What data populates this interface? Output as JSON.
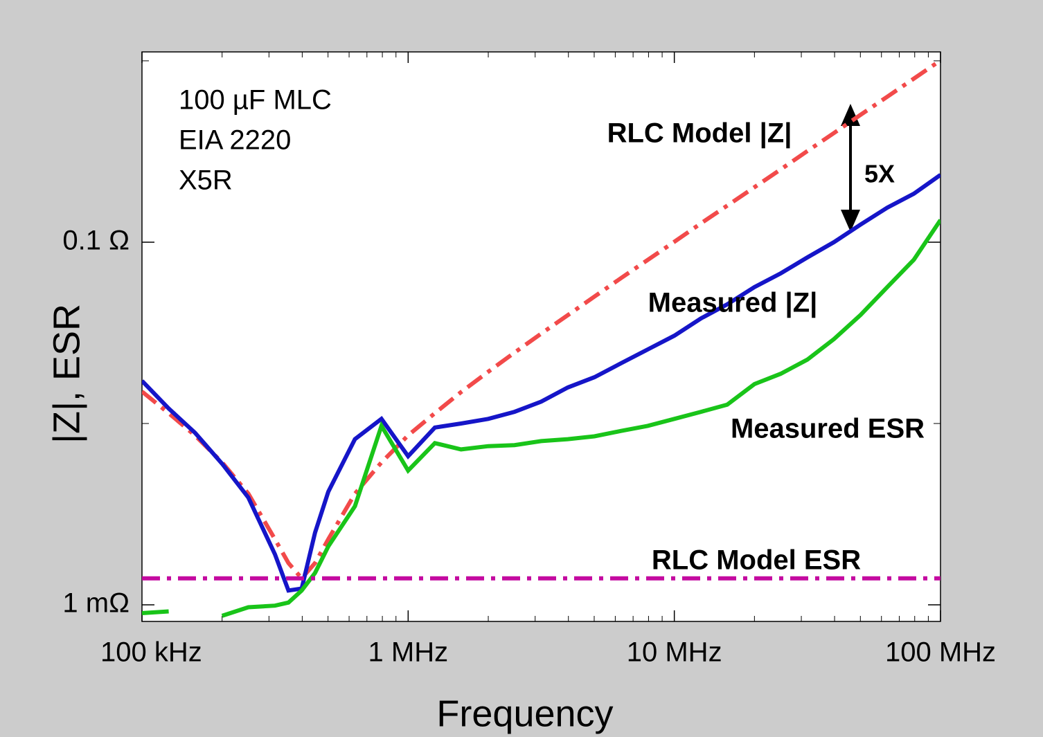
{
  "chart_data": {
    "type": "line",
    "xlabel": "Frequency",
    "ylabel": "|Z|, ESR",
    "x": [
      100000,
      126000,
      158000,
      200000,
      251000,
      316000,
      355000,
      398000,
      447000,
      501000,
      631000,
      794000,
      1000000,
      1260000,
      1580000,
      2000000,
      2510000,
      3160000,
      3980000,
      5010000,
      6310000,
      7940000,
      10000000,
      12600000,
      15800000,
      20000000,
      25100000,
      31600000,
      39800000,
      50100000,
      63100000,
      79400000,
      100000000
    ],
    "xlim": [
      100000,
      100000000
    ],
    "ylim": [
      0.00081,
      1.12
    ],
    "xlog": true,
    "ylog": true,
    "xticks": [
      {
        "value": 100000,
        "label": "100 kHz"
      },
      {
        "value": 1000000,
        "label": "1 MHz"
      },
      {
        "value": 10000000,
        "label": "10 MHz"
      },
      {
        "value": 100000000,
        "label": "100 MHz"
      }
    ],
    "yticks": [
      {
        "value": 0.1,
        "label": "0.1 Ω"
      },
      {
        "value": 0.001,
        "label": "1 mΩ"
      }
    ],
    "annotations": [
      "100 µF MLC",
      "EIA 2220",
      "X5R",
      "5X"
    ],
    "series": [
      {
        "name": "RLC Model |Z|",
        "color": "#f24a4a",
        "dash": "dashdot",
        "values": [
          0.015,
          0.0114,
          0.0086,
          0.0061,
          0.0041,
          0.0023,
          0.0017,
          0.0014,
          0.0017,
          0.0023,
          0.0041,
          0.0061,
          0.0086,
          0.0114,
          0.0149,
          0.0193,
          0.0246,
          0.0313,
          0.0396,
          0.0501,
          0.0634,
          0.0798,
          0.1005,
          0.127,
          0.159,
          0.201,
          0.252,
          0.318,
          0.4,
          0.504,
          0.634,
          0.798,
          1.005
        ]
      },
      {
        "name": "Measured |Z|",
        "color": "#1515c8",
        "dash": "solid",
        "values": [
          0.0172,
          0.0121,
          0.0089,
          0.006,
          0.0039,
          0.0019,
          0.0012,
          0.00123,
          0.0025,
          0.0042,
          0.0082,
          0.0106,
          0.0066,
          0.0095,
          0.01,
          0.0106,
          0.0116,
          0.0132,
          0.0158,
          0.018,
          0.0215,
          0.0256,
          0.0305,
          0.038,
          0.0454,
          0.0565,
          0.0673,
          0.0824,
          0.1,
          0.125,
          0.155,
          0.185,
          0.235
        ]
      },
      {
        "name": "Measured ESR",
        "color": "#19c419",
        "dash": "solid",
        "values": [
          0.0009,
          0.00092,
          null,
          0.00087,
          0.00097,
          0.00099,
          0.00103,
          0.0012,
          0.0015,
          0.0021,
          0.0035,
          0.0097,
          0.0055,
          0.0078,
          0.0072,
          0.0075,
          0.0076,
          0.008,
          0.0082,
          0.0085,
          0.0091,
          0.0097,
          0.0106,
          0.0116,
          0.0127,
          0.0165,
          0.0188,
          0.0225,
          0.0292,
          0.0397,
          0.0565,
          0.08,
          0.1325
        ]
      },
      {
        "name": "RLC Model ESR",
        "color": "#c40aa0",
        "dash": "dashdot",
        "values": [
          0.0014,
          0.0014,
          0.0014,
          0.0014,
          0.0014,
          0.0014,
          0.0014,
          0.0014,
          0.0014,
          0.0014,
          0.0014,
          0.0014,
          0.0014,
          0.0014,
          0.0014,
          0.0014,
          0.0014,
          0.0014,
          0.0014,
          0.0014,
          0.0014,
          0.0014,
          0.0014,
          0.0014,
          0.0014,
          0.0014,
          0.0014,
          0.0014,
          0.0014,
          0.0014,
          0.0014,
          0.0014,
          0.0014
        ]
      }
    ]
  }
}
